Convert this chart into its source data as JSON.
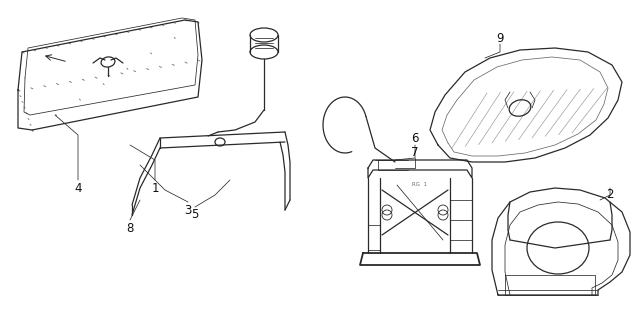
{
  "bg_color": "#ffffff",
  "line_color": "#2a2a2a",
  "label_color": "#111111",
  "figsize": [
    6.4,
    3.1
  ],
  "dpi": 100,
  "lw_main": 0.9,
  "lw_thin": 0.55,
  "lw_thick": 1.3
}
